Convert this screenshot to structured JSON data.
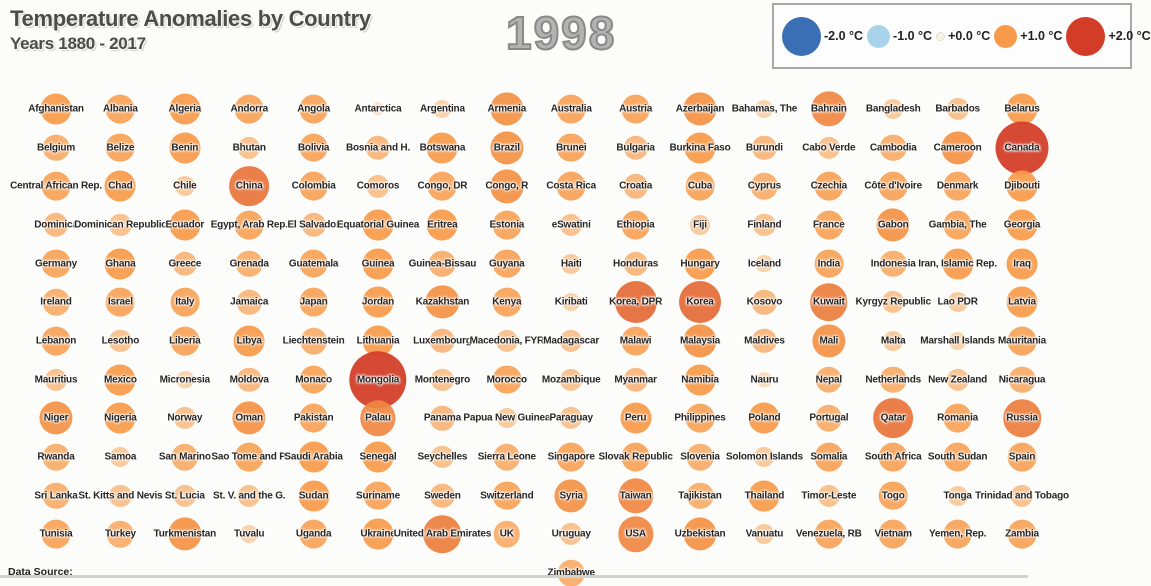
{
  "header": {
    "title": "Temperature Anomalies by Country",
    "subtitle": "Years 1880 - 2017",
    "year": "1998"
  },
  "legend": {
    "items": [
      {
        "label": "-2.0 °C",
        "value": -2.0
      },
      {
        "label": "-1.0 °C",
        "value": -1.0
      },
      {
        "label": "+0.0 °C",
        "value": 0.0
      },
      {
        "label": "+1.0 °C",
        "value": 1.0
      },
      {
        "label": "+2.0 °C",
        "value": 2.0
      }
    ]
  },
  "footer": {
    "data_source_label": "Data Source:"
  },
  "chart_data": {
    "type": "heatmap",
    "title": "Temperature Anomalies by Country",
    "subtitle": "Years 1880 - 2017",
    "year": 1998,
    "unit": "°C",
    "value_range": [
      -2,
      2
    ],
    "color_stops": {
      "-2.0": "#3b6fb5",
      "-1.0": "#a9d3ea",
      "0.0": "#f8f3e4",
      "+1.0": "#f79b4a",
      "+2.0": "#d33c26"
    },
    "grid_columns": 16,
    "countries": [
      {
        "name": "Afghanistan",
        "anomaly": 1.0
      },
      {
        "name": "Albania",
        "anomaly": 0.9
      },
      {
        "name": "Algeria",
        "anomaly": 1.0
      },
      {
        "name": "Andorra",
        "anomaly": 0.9
      },
      {
        "name": "Angola",
        "anomaly": 0.9
      },
      {
        "name": "Antarctica",
        "anomaly": 0.2
      },
      {
        "name": "Argentina",
        "anomaly": 0.4
      },
      {
        "name": "Armenia",
        "anomaly": 1.1
      },
      {
        "name": "Australia",
        "anomaly": 0.9
      },
      {
        "name": "Austria",
        "anomaly": 0.9
      },
      {
        "name": "Azerbaijan",
        "anomaly": 1.1
      },
      {
        "name": "Bahamas, The",
        "anomaly": 0.4
      },
      {
        "name": "Bahrain",
        "anomaly": 1.2
      },
      {
        "name": "Bangladesh",
        "anomaly": 0.5
      },
      {
        "name": "Barbados",
        "anomaly": 0.6
      },
      {
        "name": "Belarus",
        "anomaly": 1.0
      },
      {
        "name": "Belgium",
        "anomaly": 0.8
      },
      {
        "name": "Belize",
        "anomaly": 0.9
      },
      {
        "name": "Benin",
        "anomaly": 1.0
      },
      {
        "name": "Bhutan",
        "anomaly": 0.6
      },
      {
        "name": "Bolivia",
        "anomaly": 0.9
      },
      {
        "name": "Bosnia and H.",
        "anomaly": 0.7
      },
      {
        "name": "Botswana",
        "anomaly": 1.0
      },
      {
        "name": "Brazil",
        "anomaly": 1.1
      },
      {
        "name": "Brunei",
        "anomaly": 0.9
      },
      {
        "name": "Bulgaria",
        "anomaly": 0.7
      },
      {
        "name": "Burkina Faso",
        "anomaly": 1.0
      },
      {
        "name": "Burundi",
        "anomaly": 0.7
      },
      {
        "name": "Cabo Verde",
        "anomaly": 0.6
      },
      {
        "name": "Cambodia",
        "anomaly": 0.8
      },
      {
        "name": "Cameroon",
        "anomaly": 1.1
      },
      {
        "name": "Canada",
        "anomaly": 2.0
      },
      {
        "name": "Central African Rep.",
        "anomaly": 0.9
      },
      {
        "name": "Chad",
        "anomaly": 1.0
      },
      {
        "name": "Chile",
        "anomaly": 0.5
      },
      {
        "name": "China",
        "anomaly": 1.4
      },
      {
        "name": "Colombia",
        "anomaly": 0.9
      },
      {
        "name": "Comoros",
        "anomaly": 0.6
      },
      {
        "name": "Congo, DR",
        "anomaly": 0.9
      },
      {
        "name": "Congo, R",
        "anomaly": 1.1
      },
      {
        "name": "Costa Rica",
        "anomaly": 0.9
      },
      {
        "name": "Croatia",
        "anomaly": 0.7
      },
      {
        "name": "Cuba",
        "anomaly": 0.9
      },
      {
        "name": "Cyprus",
        "anomaly": 0.8
      },
      {
        "name": "Czechia",
        "anomaly": 0.9
      },
      {
        "name": "Côte d'Ivoire",
        "anomaly": 0.9
      },
      {
        "name": "Denmark",
        "anomaly": 0.9
      },
      {
        "name": "Djibouti",
        "anomaly": 1.0
      },
      {
        "name": "Dominica",
        "anomaly": 0.7
      },
      {
        "name": "Dominican Republic",
        "anomaly": 0.6
      },
      {
        "name": "Ecuador",
        "anomaly": 1.0
      },
      {
        "name": "Egypt, Arab Rep.",
        "anomaly": 0.9
      },
      {
        "name": "El Salvador",
        "anomaly": 0.7
      },
      {
        "name": "Equatorial Guinea",
        "anomaly": 1.0
      },
      {
        "name": "Eritrea",
        "anomaly": 1.0
      },
      {
        "name": "Estonia",
        "anomaly": 0.9
      },
      {
        "name": "eSwatini",
        "anomaly": 0.6
      },
      {
        "name": "Ethiopia",
        "anomaly": 0.9
      },
      {
        "name": "Fiji",
        "anomaly": 0.5
      },
      {
        "name": "Finland",
        "anomaly": 0.6
      },
      {
        "name": "France",
        "anomaly": 0.9
      },
      {
        "name": "Gabon",
        "anomaly": 1.1
      },
      {
        "name": "Gambia, The",
        "anomaly": 0.9
      },
      {
        "name": "Georgia",
        "anomaly": 1.0
      },
      {
        "name": "Germany",
        "anomaly": 0.9
      },
      {
        "name": "Ghana",
        "anomaly": 1.0
      },
      {
        "name": "Greece",
        "anomaly": 0.7
      },
      {
        "name": "Grenada",
        "anomaly": 0.8
      },
      {
        "name": "Guatemala",
        "anomaly": 0.9
      },
      {
        "name": "Guinea",
        "anomaly": 1.0
      },
      {
        "name": "Guinea-Bissau",
        "anomaly": 0.8
      },
      {
        "name": "Guyana",
        "anomaly": 0.9
      },
      {
        "name": "Haiti",
        "anomaly": 0.5
      },
      {
        "name": "Honduras",
        "anomaly": 0.7
      },
      {
        "name": "Hungary",
        "anomaly": 1.0
      },
      {
        "name": "Iceland",
        "anomaly": 0.4
      },
      {
        "name": "India",
        "anomaly": 0.9
      },
      {
        "name": "Indonesia",
        "anomaly": 0.8
      },
      {
        "name": "Iran, Islamic Rep.",
        "anomaly": 1.0
      },
      {
        "name": "Iraq",
        "anomaly": 1.0
      },
      {
        "name": "Ireland",
        "anomaly": 0.8
      },
      {
        "name": "Israel",
        "anomaly": 0.9
      },
      {
        "name": "Italy",
        "anomaly": 0.9
      },
      {
        "name": "Jamaica",
        "anomaly": 0.7
      },
      {
        "name": "Japan",
        "anomaly": 0.9
      },
      {
        "name": "Jordan",
        "anomaly": 1.0
      },
      {
        "name": "Kazakhstan",
        "anomaly": 1.1
      },
      {
        "name": "Kenya",
        "anomaly": 0.9
      },
      {
        "name": "Kiribati",
        "anomaly": 0.4
      },
      {
        "name": "Korea, DPR",
        "anomaly": 1.5
      },
      {
        "name": "Korea",
        "anomaly": 1.5
      },
      {
        "name": "Kosovo",
        "anomaly": 0.7
      },
      {
        "name": "Kuwait",
        "anomaly": 1.3
      },
      {
        "name": "Kyrgyz Republic",
        "anomaly": 0.6
      },
      {
        "name": "Lao PDR",
        "anomaly": 0.5
      },
      {
        "name": "Latvia",
        "anomaly": 1.0
      },
      {
        "name": "Lebanon",
        "anomaly": 0.9
      },
      {
        "name": "Lesotho",
        "anomaly": 0.6
      },
      {
        "name": "Liberia",
        "anomaly": 0.9
      },
      {
        "name": "Libya",
        "anomaly": 1.0
      },
      {
        "name": "Liechtenstein",
        "anomaly": 0.8
      },
      {
        "name": "Lithuania",
        "anomaly": 1.0
      },
      {
        "name": "Luxembourg",
        "anomaly": 0.7
      },
      {
        "name": "Macedonia, FYR",
        "anomaly": 0.6
      },
      {
        "name": "Madagascar",
        "anomaly": 0.6
      },
      {
        "name": "Malawi",
        "anomaly": 0.9
      },
      {
        "name": "Malaysia",
        "anomaly": 1.1
      },
      {
        "name": "Maldives",
        "anomaly": 0.7
      },
      {
        "name": "Mali",
        "anomaly": 1.1
      },
      {
        "name": "Malta",
        "anomaly": 0.5
      },
      {
        "name": "Marshall Islands",
        "anomaly": 0.4
      },
      {
        "name": "Mauritania",
        "anomaly": 0.9
      },
      {
        "name": "Mauritius",
        "anomaly": 0.6
      },
      {
        "name": "Mexico",
        "anomaly": 1.0
      },
      {
        "name": "Micronesia",
        "anomaly": 0.4
      },
      {
        "name": "Moldova",
        "anomaly": 0.7
      },
      {
        "name": "Monaco",
        "anomaly": 0.9
      },
      {
        "name": "Mongolia",
        "anomaly": 2.2
      },
      {
        "name": "Montenegro",
        "anomaly": 0.6
      },
      {
        "name": "Morocco",
        "anomaly": 0.9
      },
      {
        "name": "Mozambique",
        "anomaly": 0.6
      },
      {
        "name": "Myanmar",
        "anomaly": 0.7
      },
      {
        "name": "Namibia",
        "anomaly": 1.0
      },
      {
        "name": "Nauru",
        "anomaly": 0.3
      },
      {
        "name": "Nepal",
        "anomaly": 0.8
      },
      {
        "name": "Netherlands",
        "anomaly": 0.8
      },
      {
        "name": "New Zealand",
        "anomaly": 0.6
      },
      {
        "name": "Nicaragua",
        "anomaly": 0.8
      },
      {
        "name": "Niger",
        "anomaly": 1.1
      },
      {
        "name": "Nigeria",
        "anomaly": 1.0
      },
      {
        "name": "Norway",
        "anomaly": 0.6
      },
      {
        "name": "Oman",
        "anomaly": 1.1
      },
      {
        "name": "Pakistan",
        "anomaly": 0.9
      },
      {
        "name": "Palau",
        "anomaly": 1.2
      },
      {
        "name": "Panama",
        "anomaly": 0.7
      },
      {
        "name": "Papua New Guinea",
        "anomaly": 0.5
      },
      {
        "name": "Paraguay",
        "anomaly": 0.6
      },
      {
        "name": "Peru",
        "anomaly": 1.0
      },
      {
        "name": "Philippines",
        "anomaly": 0.9
      },
      {
        "name": "Poland",
        "anomaly": 1.0
      },
      {
        "name": "Portugal",
        "anomaly": 0.8
      },
      {
        "name": "Qatar",
        "anomaly": 1.4
      },
      {
        "name": "Romania",
        "anomaly": 0.9
      },
      {
        "name": "Russia",
        "anomaly": 1.3
      },
      {
        "name": "Rwanda",
        "anomaly": 0.8
      },
      {
        "name": "Samoa",
        "anomaly": 0.5
      },
      {
        "name": "San Marino",
        "anomaly": 0.8
      },
      {
        "name": "Sao Tome and P.",
        "anomaly": 0.9
      },
      {
        "name": "Saudi Arabia",
        "anomaly": 1.0
      },
      {
        "name": "Senegal",
        "anomaly": 1.0
      },
      {
        "name": "Seychelles",
        "anomaly": 0.6
      },
      {
        "name": "Sierra Leone",
        "anomaly": 0.8
      },
      {
        "name": "Singapore",
        "anomaly": 0.9
      },
      {
        "name": "Slovak Republic",
        "anomaly": 0.9
      },
      {
        "name": "Slovenia",
        "anomaly": 0.8
      },
      {
        "name": "Solomon Islands",
        "anomaly": 0.5
      },
      {
        "name": "Somalia",
        "anomaly": 0.9
      },
      {
        "name": "South Africa",
        "anomaly": 0.9
      },
      {
        "name": "South Sudan",
        "anomaly": 0.9
      },
      {
        "name": "Spain",
        "anomaly": 0.9
      },
      {
        "name": "Sri Lanka",
        "anomaly": 0.8
      },
      {
        "name": "St. Kitts and Nevis",
        "anomaly": 0.6
      },
      {
        "name": "St. Lucia",
        "anomaly": 0.6
      },
      {
        "name": "St. V. and the G.",
        "anomaly": 0.6
      },
      {
        "name": "Sudan",
        "anomaly": 1.0
      },
      {
        "name": "Suriname",
        "anomaly": 0.9
      },
      {
        "name": "Sweden",
        "anomaly": 0.7
      },
      {
        "name": "Switzerland",
        "anomaly": 0.9
      },
      {
        "name": "Syria",
        "anomaly": 1.1
      },
      {
        "name": "Taiwan",
        "anomaly": 1.2
      },
      {
        "name": "Tajikistan",
        "anomaly": 0.8
      },
      {
        "name": "Thailand",
        "anomaly": 1.0
      },
      {
        "name": "Timor-Leste",
        "anomaly": 0.6
      },
      {
        "name": "Togo",
        "anomaly": 0.9
      },
      {
        "name": "Tonga",
        "anomaly": 0.5
      },
      {
        "name": "Trinidad and Tobago",
        "anomaly": 0.6
      },
      {
        "name": "Tunisia",
        "anomaly": 0.9
      },
      {
        "name": "Turkey",
        "anomaly": 0.8
      },
      {
        "name": "Turkmenistan",
        "anomaly": 1.1
      },
      {
        "name": "Tuvalu",
        "anomaly": 0.4
      },
      {
        "name": "Uganda",
        "anomaly": 0.9
      },
      {
        "name": "Ukraine",
        "anomaly": 1.0
      },
      {
        "name": "United Arab Emirates",
        "anomaly": 1.3
      },
      {
        "name": "UK",
        "anomaly": 0.8
      },
      {
        "name": "Uruguay",
        "anomaly": 0.6
      },
      {
        "name": "USA",
        "anomaly": 1.2
      },
      {
        "name": "Uzbekistan",
        "anomaly": 1.1
      },
      {
        "name": "Vanuatu",
        "anomaly": 0.5
      },
      {
        "name": "Venezuela, RB",
        "anomaly": 0.9
      },
      {
        "name": "Vietnam",
        "anomaly": 0.9
      },
      {
        "name": "Yemen, Rep.",
        "anomaly": 0.9
      },
      {
        "name": "Zambia",
        "anomaly": 0.9
      },
      {
        "name": "Zimbabwe",
        "anomaly": 0.8,
        "col": 8
      }
    ]
  }
}
